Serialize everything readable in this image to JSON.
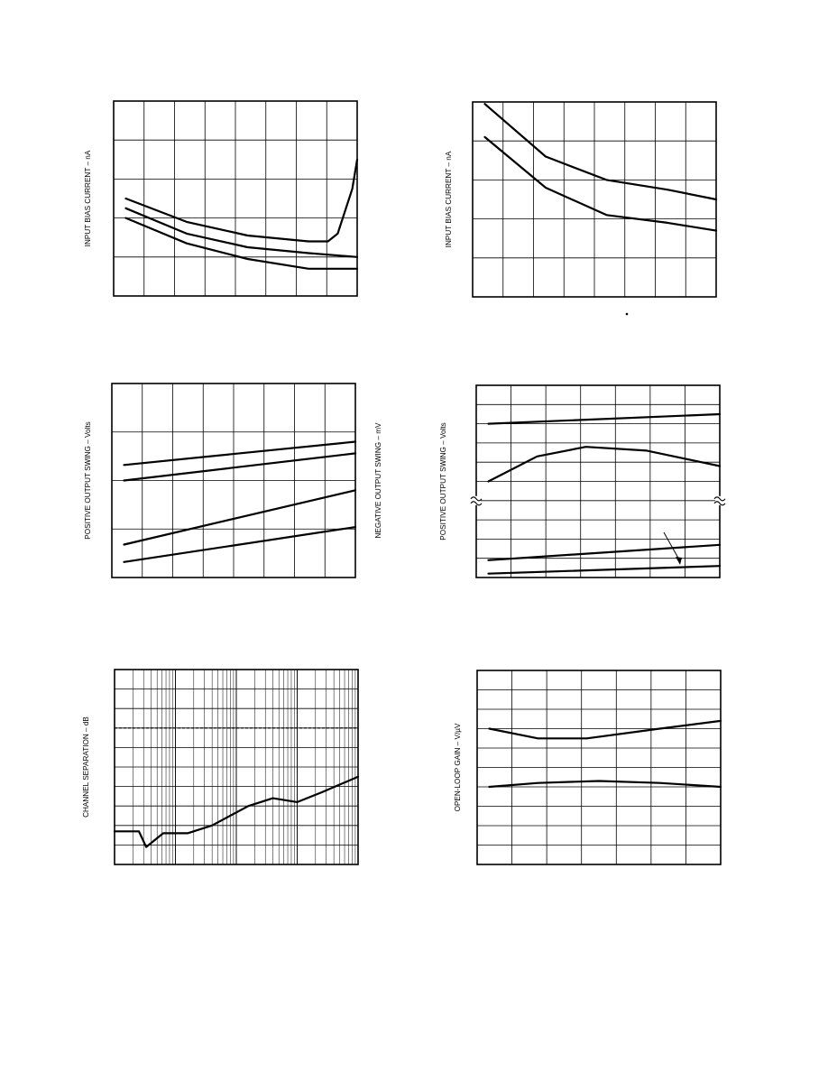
{
  "chart_data": [
    {
      "type": "line",
      "ylabel": "INPUT BIAS CURRENT – nA",
      "grid": "on",
      "series": [
        {
          "values": [
            [
              0.05,
              0.5
            ],
            [
              0.3,
              0.38
            ],
            [
              0.55,
              0.31
            ],
            [
              0.8,
              0.28
            ],
            [
              0.88,
              0.28
            ],
            [
              0.92,
              0.32
            ],
            [
              0.98,
              0.55
            ],
            [
              1.0,
              0.7
            ]
          ]
        },
        {
          "values": [
            [
              0.05,
              0.45
            ],
            [
              0.3,
              0.32
            ],
            [
              0.55,
              0.25
            ],
            [
              0.8,
              0.22
            ],
            [
              1.0,
              0.2
            ]
          ]
        },
        {
          "values": [
            [
              0.05,
              0.4
            ],
            [
              0.3,
              0.27
            ],
            [
              0.55,
              0.19
            ],
            [
              0.8,
              0.14
            ],
            [
              1.0,
              0.14
            ]
          ]
        }
      ]
    },
    {
      "type": "line",
      "ylabel": "INPUT BIAS CURRENT – nA",
      "grid": "on",
      "series": [
        {
          "values": [
            [
              0.05,
              0.99
            ],
            [
              0.3,
              0.72
            ],
            [
              0.55,
              0.6
            ],
            [
              0.8,
              0.55
            ],
            [
              1.0,
              0.5
            ]
          ]
        },
        {
          "values": [
            [
              0.05,
              0.82
            ],
            [
              0.3,
              0.56
            ],
            [
              0.55,
              0.42
            ],
            [
              0.8,
              0.38
            ],
            [
              1.0,
              0.34
            ]
          ]
        }
      ]
    },
    {
      "type": "line",
      "ylabel": "POSITIVE OUTPUT SWING – Volts",
      "y2label": "NEGATIVE OUTPUT SWING – mV",
      "grid": "on",
      "series": [
        {
          "values": [
            [
              0.05,
              0.58
            ],
            [
              1.0,
              0.7
            ]
          ]
        },
        {
          "values": [
            [
              0.05,
              0.5
            ],
            [
              1.0,
              0.64
            ]
          ]
        },
        {
          "values": [
            [
              0.05,
              0.17
            ],
            [
              1.0,
              0.45
            ]
          ]
        },
        {
          "values": [
            [
              0.05,
              0.08
            ],
            [
              1.0,
              0.26
            ]
          ]
        }
      ]
    },
    {
      "type": "line",
      "ylabel": "POSITIVE OUTPUT SWING – Volts",
      "grid": "on",
      "series": [
        {
          "values": [
            [
              0.05,
              0.8
            ],
            [
              1.0,
              0.85
            ]
          ]
        },
        {
          "values": [
            [
              0.05,
              0.5
            ],
            [
              0.25,
              0.63
            ],
            [
              0.45,
              0.68
            ],
            [
              0.7,
              0.66
            ],
            [
              1.0,
              0.58
            ]
          ]
        },
        {
          "values": [
            [
              0.05,
              0.09
            ],
            [
              1.0,
              0.17
            ]
          ]
        },
        {
          "values": [
            [
              0.05,
              0.02
            ],
            [
              1.0,
              0.06
            ]
          ]
        }
      ]
    },
    {
      "type": "line",
      "ylabel": "CHANNEL SEPARATION – dB",
      "xscale": "log",
      "grid": "on",
      "series": [
        {
          "values": [
            [
              0.0,
              0.7
            ],
            [
              1.0,
              0.7
            ]
          ],
          "style": "dashed"
        },
        {
          "values": [
            [
              0.0,
              0.17
            ],
            [
              0.1,
              0.17
            ],
            [
              0.13,
              0.09
            ],
            [
              0.2,
              0.16
            ],
            [
              0.3,
              0.16
            ],
            [
              0.4,
              0.2
            ],
            [
              0.55,
              0.3
            ],
            [
              0.65,
              0.34
            ],
            [
              0.75,
              0.32
            ],
            [
              0.85,
              0.37
            ],
            [
              1.0,
              0.45
            ]
          ]
        }
      ]
    },
    {
      "type": "line",
      "ylabel": "OPEN-LOOP GAIN – V/µV",
      "grid": "on",
      "series": [
        {
          "values": [
            [
              0.05,
              0.7
            ],
            [
              0.25,
              0.65
            ],
            [
              0.45,
              0.65
            ],
            [
              0.75,
              0.7
            ],
            [
              1.0,
              0.74
            ]
          ]
        },
        {
          "values": [
            [
              0.05,
              0.4
            ],
            [
              0.25,
              0.42
            ],
            [
              0.5,
              0.43
            ],
            [
              0.75,
              0.42
            ],
            [
              1.0,
              0.4
            ]
          ]
        }
      ]
    }
  ]
}
